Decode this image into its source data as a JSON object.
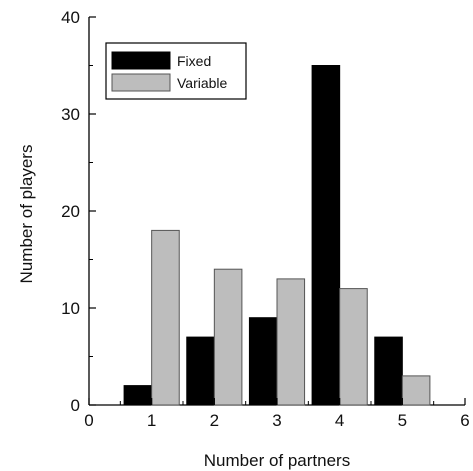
{
  "chart_data": {
    "type": "bar",
    "title": "",
    "xlabel": "Number of partners",
    "ylabel": "Number of players",
    "categories": [
      1,
      2,
      3,
      4,
      5
    ],
    "series": [
      {
        "name": "Fixed",
        "values": [
          2,
          7,
          9,
          35,
          7
        ],
        "color": "#000000"
      },
      {
        "name": "Variable",
        "values": [
          18,
          14,
          13,
          12,
          3
        ],
        "color": "#bdbdbd"
      }
    ],
    "xlim": [
      0,
      6
    ],
    "ylim": [
      0,
      40
    ],
    "xticks": [
      "0",
      "1",
      "2",
      "3",
      "4",
      "5",
      "6"
    ],
    "yticks": [
      "0",
      "10",
      "20",
      "30",
      "40"
    ],
    "grid": false,
    "legend_position": "top-left"
  }
}
